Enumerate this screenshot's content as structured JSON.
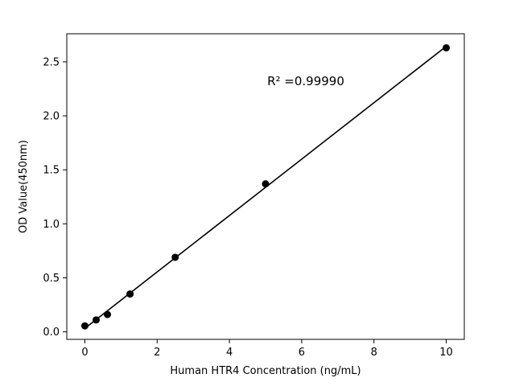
{
  "chart_data": {
    "type": "scatter",
    "title": "",
    "xlabel": "Human HTR4 Concentration (ng/mL)",
    "ylabel": "OD Value(450nm)",
    "annotation": "R² =0.99990",
    "x": [
      0,
      0.313,
      0.625,
      1.25,
      2.5,
      5,
      10
    ],
    "y": [
      0.055,
      0.11,
      0.16,
      0.35,
      0.69,
      1.37,
      2.63
    ],
    "xlim": [
      -0.5,
      10.5
    ],
    "ylim": [
      -0.07,
      2.76
    ],
    "xticks": [
      0,
      2,
      4,
      6,
      8,
      10
    ],
    "yticks": [
      0.0,
      0.5,
      1.0,
      1.5,
      2.0,
      2.5
    ],
    "grid": false,
    "legend": null,
    "marker_color": "#000000",
    "line_color": "#000000",
    "background_color": "#ffffff"
  }
}
